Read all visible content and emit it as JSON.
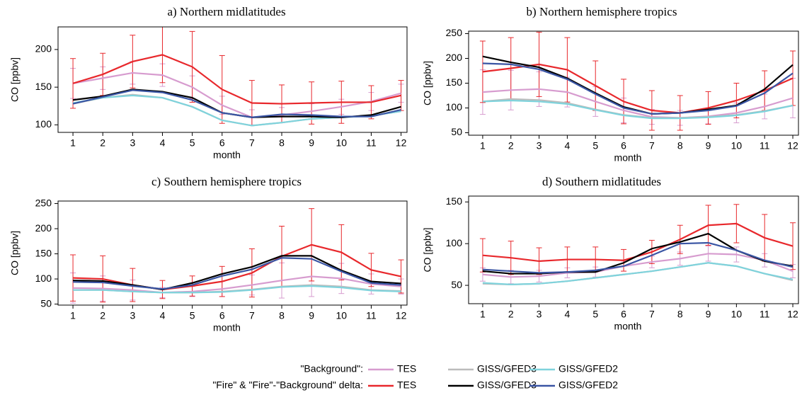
{
  "chart_data": [
    {
      "type": "line",
      "title": "a) Northern midlatitudes",
      "x_label": "month",
      "y_label": "CO [ppbv]",
      "x": [
        1,
        2,
        3,
        4,
        5,
        6,
        7,
        8,
        9,
        10,
        11,
        12
      ],
      "xlim": [
        0.5,
        12.2
      ],
      "xticks": [
        1,
        2,
        3,
        4,
        5,
        6,
        7,
        8,
        9,
        10,
        11,
        12
      ],
      "ylim": [
        90,
        230
      ],
      "yticks": [
        100,
        150,
        200
      ],
      "series": [
        {
          "color": "#d79ccf",
          "values": [
            155,
            162,
            169,
            166,
            150,
            126,
            110,
            113,
            118,
            124,
            131,
            142
          ],
          "errors": [
            20,
            15,
            15,
            15,
            15,
            12,
            10,
            10,
            10,
            10,
            12,
            12
          ]
        },
        {
          "color": "#bcbcbc",
          "values": [
            128,
            136,
            140,
            136,
            124,
            106,
            99,
            103,
            108,
            110,
            112,
            118
          ]
        },
        {
          "color": "#7fd3dc",
          "values": [
            129,
            136,
            139,
            136,
            124,
            106,
            99,
            103,
            108,
            110,
            112,
            118
          ]
        },
        {
          "color": "#e8282c",
          "values": [
            155,
            167,
            184,
            193,
            177,
            147,
            129,
            128,
            129,
            130,
            130,
            139
          ],
          "errors": [
            33,
            28,
            35,
            37,
            47,
            45,
            30,
            25,
            28,
            28,
            22,
            20
          ]
        },
        {
          "color": "#000000",
          "values": [
            133,
            138,
            147,
            144,
            136,
            116,
            110,
            111,
            111,
            110,
            113,
            124
          ]
        },
        {
          "color": "#3a55a4",
          "values": [
            128,
            137,
            146,
            143,
            133,
            116,
            110,
            114,
            113,
            111,
            111,
            120
          ]
        }
      ]
    },
    {
      "type": "line",
      "title": "b) Northern hemisphere tropics",
      "x_label": "month",
      "y_label": "CO [ppbv]",
      "x": [
        1,
        2,
        3,
        4,
        5,
        6,
        7,
        8,
        9,
        10,
        11,
        12
      ],
      "xlim": [
        0.5,
        12.2
      ],
      "xticks": [
        1,
        2,
        3,
        4,
        5,
        6,
        7,
        8,
        9,
        10,
        11,
        12
      ],
      "ylim": [
        45,
        255
      ],
      "yticks": [
        50,
        100,
        150,
        200,
        250
      ],
      "series": [
        {
          "color": "#d79ccf",
          "values": [
            132,
            136,
            138,
            132,
            113,
            95,
            82,
            80,
            83,
            90,
            103,
            120
          ],
          "errors": [
            45,
            40,
            35,
            30,
            30,
            25,
            15,
            15,
            15,
            20,
            25,
            40
          ]
        },
        {
          "color": "#bcbcbc",
          "values": [
            113,
            118,
            116,
            110,
            97,
            86,
            80,
            80,
            82,
            86,
            94,
            105
          ]
        },
        {
          "color": "#7fd3dc",
          "values": [
            113,
            115,
            113,
            108,
            96,
            85,
            79,
            79,
            81,
            85,
            93,
            105
          ]
        },
        {
          "color": "#e8282c",
          "values": [
            173,
            180,
            188,
            177,
            145,
            113,
            95,
            90,
            100,
            115,
            135,
            160
          ],
          "errors": [
            62,
            62,
            65,
            65,
            50,
            45,
            40,
            35,
            33,
            35,
            40,
            55
          ]
        },
        {
          "color": "#000000",
          "values": [
            204,
            192,
            182,
            160,
            130,
            102,
            88,
            90,
            97,
            105,
            138,
            187
          ]
        },
        {
          "color": "#3a55a4",
          "values": [
            190,
            188,
            178,
            158,
            128,
            100,
            88,
            90,
            95,
            104,
            130,
            170
          ]
        }
      ]
    },
    {
      "type": "line",
      "title": "c) Southern hemisphere tropics",
      "x_label": "month",
      "y_label": "CO [ppbv]",
      "x": [
        1,
        2,
        3,
        4,
        5,
        6,
        7,
        8,
        9,
        10,
        11,
        12
      ],
      "xlim": [
        0.5,
        12.2
      ],
      "xticks": [
        1,
        2,
        3,
        4,
        5,
        6,
        7,
        8,
        9,
        10,
        11,
        12
      ],
      "ylim": [
        48,
        255
      ],
      "yticks": [
        50,
        100,
        150,
        200,
        250
      ],
      "series": [
        {
          "color": "#d79ccf",
          "values": [
            82,
            81,
            78,
            73,
            75,
            80,
            88,
            97,
            105,
            101,
            90,
            85
          ],
          "errors": [
            30,
            25,
            20,
            10,
            10,
            15,
            20,
            35,
            40,
            30,
            20,
            15
          ]
        },
        {
          "color": "#bcbcbc",
          "values": [
            78,
            78,
            75,
            73,
            73,
            75,
            79,
            85,
            88,
            85,
            78,
            76
          ]
        },
        {
          "color": "#7fd3dc",
          "values": [
            78,
            78,
            75,
            73,
            73,
            74,
            78,
            84,
            86,
            83,
            77,
            75
          ]
        },
        {
          "color": "#e8282c",
          "values": [
            102,
            100,
            88,
            79,
            86,
            95,
            112,
            145,
            168,
            153,
            118,
            105
          ],
          "errors": [
            46,
            46,
            33,
            18,
            20,
            30,
            48,
            60,
            72,
            55,
            33,
            33
          ]
        },
        {
          "color": "#000000",
          "values": [
            97,
            96,
            88,
            79,
            92,
            110,
            124,
            146,
            146,
            117,
            95,
            91
          ]
        },
        {
          "color": "#3a55a4",
          "values": [
            94,
            93,
            86,
            80,
            88,
            106,
            119,
            142,
            140,
            115,
            92,
            88
          ]
        }
      ]
    },
    {
      "type": "line",
      "title": "d) Southern midlatitudes",
      "x_label": "month",
      "y_label": "CO [ppbv]",
      "x": [
        1,
        2,
        3,
        4,
        5,
        6,
        7,
        8,
        9,
        10,
        11,
        12
      ],
      "xlim": [
        0.5,
        12.2
      ],
      "xticks": [
        1,
        2,
        3,
        4,
        5,
        6,
        7,
        8,
        9,
        10,
        11,
        12
      ],
      "ylim": [
        28,
        157
      ],
      "yticks": [
        50,
        100,
        150
      ],
      "series": [
        {
          "color": "#d79ccf",
          "values": [
            63,
            60,
            61,
            65,
            66,
            73,
            78,
            82,
            88,
            87,
            80,
            67
          ],
          "errors": [
            8,
            8,
            7,
            6,
            6,
            6,
            7,
            8,
            9,
            9,
            8,
            8
          ]
        },
        {
          "color": "#bcbcbc",
          "values": [
            52,
            51,
            52,
            55,
            59,
            63,
            67,
            72,
            77,
            73,
            64,
            56
          ]
        },
        {
          "color": "#7fd3dc",
          "values": [
            53,
            51,
            52,
            55,
            59,
            63,
            67,
            72,
            77,
            73,
            64,
            57
          ]
        },
        {
          "color": "#e8282c",
          "values": [
            86,
            83,
            79,
            81,
            81,
            80,
            90,
            105,
            122,
            124,
            107,
            97
          ],
          "errors": [
            20,
            20,
            16,
            15,
            15,
            13,
            14,
            17,
            24,
            23,
            28,
            28
          ]
        },
        {
          "color": "#000000",
          "values": [
            67,
            64,
            64,
            66,
            66,
            77,
            94,
            102,
            112,
            92,
            79,
            73
          ]
        },
        {
          "color": "#3a55a4",
          "values": [
            69,
            67,
            65,
            66,
            68,
            73,
            86,
            100,
            101,
            92,
            80,
            72
          ]
        }
      ]
    }
  ],
  "legend": [
    {
      "label": "\"Background\":",
      "entries": [
        {
          "name": "TES",
          "color": "#d79ccf"
        },
        {
          "name": "GISS/GFED3",
          "color": "#bcbcbc"
        },
        {
          "name": "GISS/GFED2",
          "color": "#7fd3dc"
        }
      ]
    },
    {
      "label": "\"Fire\" & \"Fire\"-\"Background\" delta:",
      "entries": [
        {
          "name": "TES",
          "color": "#e8282c"
        },
        {
          "name": "GISS/GFED3",
          "color": "#000000"
        },
        {
          "name": "GISS/GFED2",
          "color": "#3a55a4"
        }
      ]
    }
  ]
}
